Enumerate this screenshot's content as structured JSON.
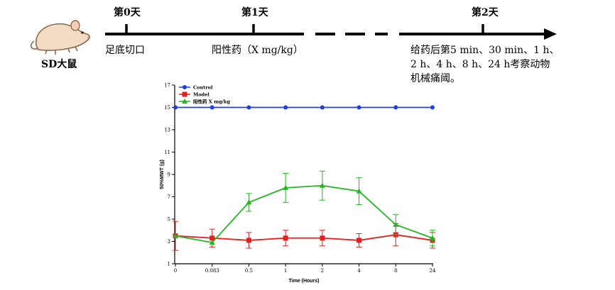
{
  "timeline": {
    "day0": "第0天",
    "day1": "第1天",
    "day2": "第2天",
    "step0": "足底切口",
    "step1": "阳性药（X mg/kg）",
    "step2_lines": [
      "给药后第5 min、30 min、1 h、",
      "2 h、4 h、8 h、24 h考察动物",
      "机械痛阈。"
    ],
    "animal": "SD大鼠"
  },
  "chart_data": {
    "type": "line",
    "xlabel": "Time (Hours)",
    "ylabel": "50%MWT (g)",
    "categories": [
      "0",
      "0.083",
      "0.5",
      "1",
      "2",
      "4",
      "8",
      "24"
    ],
    "yticks": [
      1,
      3,
      5,
      7,
      9,
      11,
      13,
      15,
      17
    ],
    "ylim": [
      1,
      17
    ],
    "grid": false,
    "legend_position": "top-left",
    "series": [
      {
        "name": "Control",
        "color": "#1f3fe0",
        "marker": "circle",
        "values": [
          15,
          15,
          15,
          15,
          15,
          15,
          15,
          15
        ],
        "errors": [
          0,
          0,
          0,
          0,
          0,
          0,
          0,
          0
        ]
      },
      {
        "name": "Model",
        "color": "#e61e1e",
        "marker": "square",
        "values": [
          3.5,
          3.3,
          3.1,
          3.3,
          3.3,
          3.1,
          3.6,
          3.1
        ],
        "errors": [
          1.3,
          0.8,
          0.7,
          0.7,
          0.7,
          0.6,
          1.0,
          0.7
        ]
      },
      {
        "name": "阳性药 X mg/kg",
        "color": "#22b822",
        "marker": "triangle",
        "values": [
          3.5,
          2.9,
          6.5,
          7.8,
          8.0,
          7.5,
          4.5,
          3.3
        ],
        "errors": [
          0,
          0,
          0.8,
          1.3,
          1.3,
          1.2,
          0.9,
          0.7
        ]
      }
    ]
  }
}
